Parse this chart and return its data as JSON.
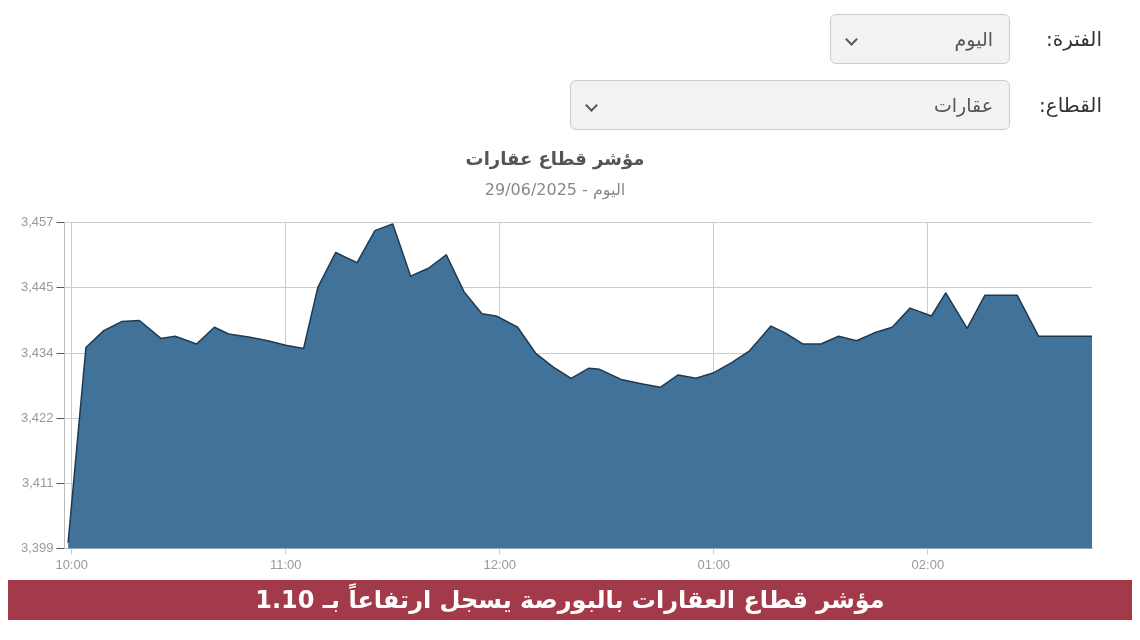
{
  "chart_data": {
    "type": "area",
    "title": "مؤشر قطاع عقارات",
    "subtitle": "اليوم - 29/06/2025",
    "annotations": [
      "الفترة:",
      "اليوم",
      "القطاع:",
      "عقارات",
      "مؤشر قطاع العقارات بالبورصة يسجل ارتفاعاً بـ 1.10"
    ],
    "x": [
      "2025-06-29T09:59",
      "2025-06-29T10:04",
      "2025-06-29T10:09",
      "2025-06-29T10:14",
      "2025-06-29T10:19",
      "2025-06-29T10:25",
      "2025-06-29T10:29",
      "2025-06-29T10:35",
      "2025-06-29T10:40",
      "2025-06-29T10:44",
      "2025-06-29T10:50",
      "2025-06-29T10:55",
      "2025-06-29T11:00",
      "2025-06-29T11:05",
      "2025-06-29T11:09",
      "2025-06-29T11:14",
      "2025-06-29T11:20",
      "2025-06-29T11:25",
      "2025-06-29T11:30",
      "2025-06-29T11:35",
      "2025-06-29T11:40",
      "2025-06-29T11:45",
      "2025-06-29T11:50",
      "2025-06-29T11:55",
      "2025-06-29T11:59",
      "2025-06-29T12:05",
      "2025-06-29T12:10",
      "2025-06-29T12:15",
      "2025-06-29T12:20",
      "2025-06-29T12:25",
      "2025-06-29T12:28",
      "2025-06-29T12:34",
      "2025-06-29T12:40",
      "2025-06-29T12:45",
      "2025-06-29T12:50",
      "2025-06-29T12:55",
      "2025-06-29T13:00",
      "2025-06-29T13:05",
      "2025-06-29T13:10",
      "2025-06-29T13:16",
      "2025-06-29T13:20",
      "2025-06-29T13:25",
      "2025-06-29T13:30",
      "2025-06-29T13:35",
      "2025-06-29T13:40",
      "2025-06-29T13:45",
      "2025-06-29T13:50",
      "2025-06-29T13:55",
      "2025-06-29T14:01",
      "2025-06-29T14:05",
      "2025-06-29T14:11",
      "2025-06-29T14:16",
      "2025-06-29T14:25",
      "2025-06-29T14:31",
      "2025-06-29T14:46"
    ],
    "series": [
      {
        "color": "#41729a",
        "values": [
          3400,
          3434.8,
          3437.8,
          3439.4,
          3439.6,
          3436.4,
          3436.8,
          3435.4,
          3438.4,
          3437.2,
          3436.6,
          3436.0,
          3435.2,
          3434.6,
          3445.5,
          3451.7,
          3449.9,
          3455.6,
          3456.8,
          3447.5,
          3448.9,
          3451.3,
          3444.7,
          3440.8,
          3440.4,
          3438.4,
          3433.8,
          3431.3,
          3429.3,
          3431.1,
          3430.9,
          3429.1,
          3428.3,
          3427.7,
          3429.9,
          3429.3,
          3430.3,
          3432.1,
          3434.2,
          3438.6,
          3437.4,
          3435.4,
          3435.4,
          3436.8,
          3436.0,
          3437.4,
          3438.4,
          3441.8,
          3440.4,
          3444.5,
          3438.2,
          3444.1,
          3444.1,
          3436.8,
          3436.8
        ]
      }
    ],
    "xlim": [
      "2025-06-29T09:58",
      "2025-06-29T14:46"
    ],
    "xticks": [
      {
        "value": "2025-06-29T10:00",
        "label": "10:00"
      },
      {
        "value": "2025-06-29T11:00",
        "label": "11:00"
      },
      {
        "value": "2025-06-29T12:00",
        "label": "12:00"
      },
      {
        "value": "2025-06-29T13:00",
        "label": "01:00"
      },
      {
        "value": "2025-06-29T14:00",
        "label": "02:00"
      }
    ],
    "ylim": [
      3399,
      3457
    ],
    "yticks": [
      {
        "value": 3399,
        "label": "3,399"
      },
      {
        "value": 3410.6,
        "label": "3,411"
      },
      {
        "value": 3422.2,
        "label": "3,422"
      },
      {
        "value": 3433.8,
        "label": "3,434"
      },
      {
        "value": 3445.4,
        "label": "3,445"
      },
      {
        "value": 3457,
        "label": "3,457"
      }
    ],
    "grid": true,
    "legend": false,
    "marker": "none"
  }
}
